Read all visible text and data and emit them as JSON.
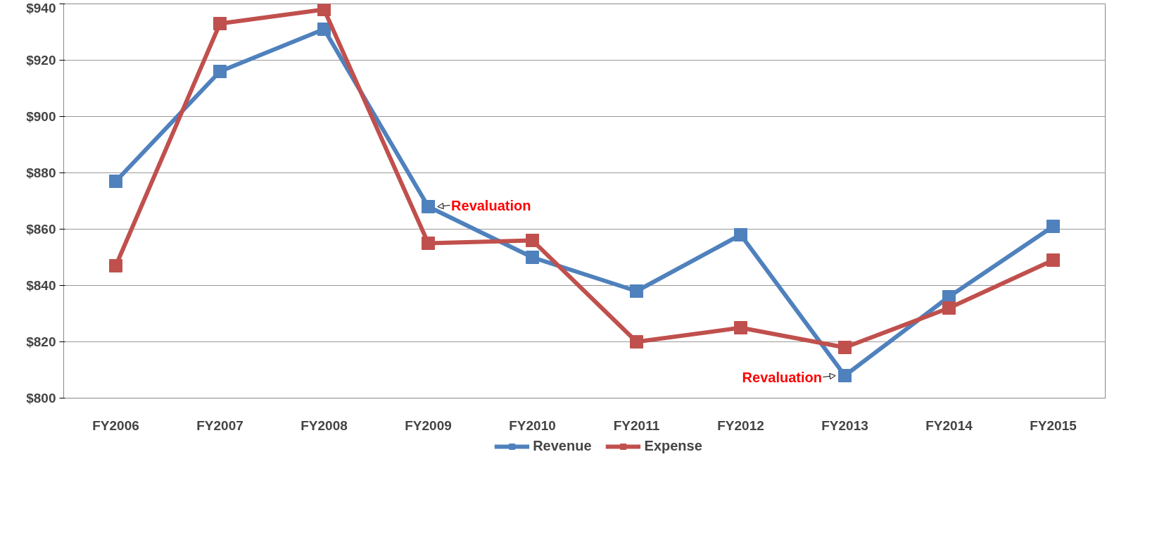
{
  "chart_data": {
    "type": "line",
    "categories": [
      "FY2006",
      "FY2007",
      "FY2008",
      "FY2009",
      "FY2010",
      "FY2011",
      "FY2012",
      "FY2013",
      "FY2014",
      "FY2015"
    ],
    "series": [
      {
        "name": "Revenue",
        "color": "#4f81bd",
        "values": [
          877,
          916,
          931,
          868,
          850,
          838,
          858,
          808,
          836,
          861
        ]
      },
      {
        "name": "Expense",
        "color": "#c0504d",
        "values": [
          847,
          933,
          938,
          855,
          856,
          820,
          825,
          818,
          832,
          849
        ]
      }
    ],
    "ylim": [
      800,
      940
    ],
    "yticks": [
      {
        "value": 800,
        "label": "$800"
      },
      {
        "value": 820,
        "label": "$820"
      },
      {
        "value": 840,
        "label": "$840"
      },
      {
        "value": 860,
        "label": "$860"
      },
      {
        "value": 880,
        "label": "$880"
      },
      {
        "value": 900,
        "label": "$900"
      },
      {
        "value": 920,
        "label": "$920"
      },
      {
        "value": 940,
        "label": "$940"
      }
    ],
    "annotations": [
      {
        "text": "Revaluation",
        "x": "FY2009",
        "y": 868
      },
      {
        "text": "Revaluation",
        "x": "FY2013",
        "y": 808
      }
    ],
    "grid": "y",
    "legend": "bottom",
    "marker": "square",
    "line_style": "solid"
  }
}
